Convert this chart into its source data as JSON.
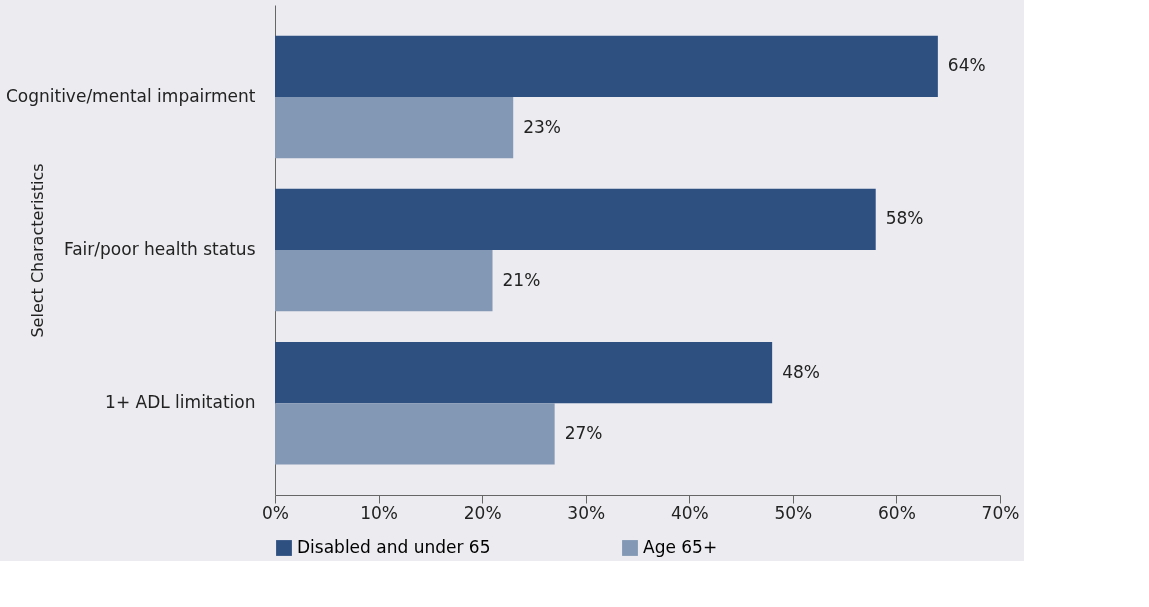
{
  "chart_data": {
    "type": "bar",
    "orientation": "horizontal",
    "ylabel": "Select Characteristics",
    "categories": [
      "Cognitive/mental impairment",
      "Fair/poor health status",
      "1+ ADL limitation"
    ],
    "series": [
      {
        "name": "Disabled and under 65",
        "color": "#2e5080",
        "values": [
          64,
          58,
          48
        ],
        "value_labels": [
          "64%",
          "58%",
          "48%"
        ]
      },
      {
        "name": "Age 65+",
        "color": "#8398b4",
        "values": [
          23,
          21,
          27
        ],
        "value_labels": [
          "23%",
          "21%",
          "27%"
        ]
      }
    ],
    "xlim": [
      0,
      70
    ],
    "xticks": [
      {
        "value": 0,
        "label": "0%"
      },
      {
        "value": 10,
        "label": "10%"
      },
      {
        "value": 20,
        "label": "20%"
      },
      {
        "value": 30,
        "label": "30%"
      },
      {
        "value": 40,
        "label": "40%"
      },
      {
        "value": 50,
        "label": "50%"
      },
      {
        "value": 60,
        "label": "60%"
      },
      {
        "value": 70,
        "label": "70%"
      }
    ],
    "grid": false,
    "legend": "bottom"
  }
}
